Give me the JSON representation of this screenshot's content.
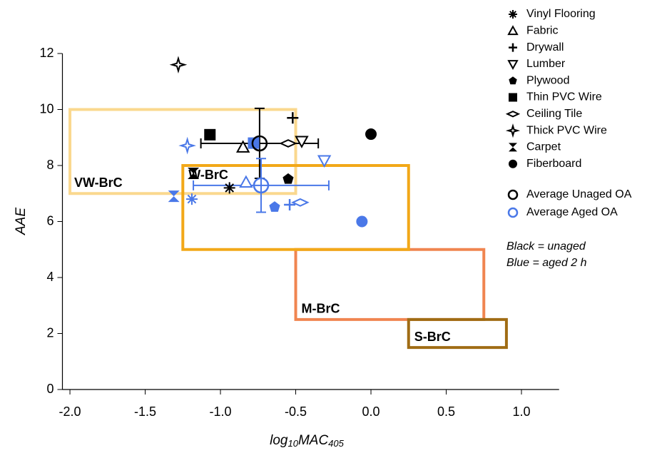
{
  "chart_data": {
    "type": "scatter",
    "y_label": "AAE",
    "x_label_parts": [
      "log",
      "10",
      "MAC",
      "405"
    ],
    "xlim": [
      -2.05,
      1.25
    ],
    "ylim": [
      0,
      12
    ],
    "xticks": [
      {
        "value": -2,
        "label": "-2.0"
      },
      -1.5,
      {
        "value": -1,
        "label": "-1.0"
      },
      -0.5,
      {
        "value": 0,
        "label": "0.0"
      },
      0.5,
      {
        "value": 1,
        "label": "1.0"
      }
    ],
    "yticks": [
      0,
      2,
      4,
      6,
      8,
      10,
      12
    ],
    "regions": [
      {
        "label": "VW-BrC",
        "x": [
          -2.0,
          -0.5
        ],
        "y": [
          7,
          10
        ],
        "color": "#fad88e"
      },
      {
        "label": "M-BrC",
        "x": [
          -0.5,
          0.75
        ],
        "y": [
          2.5,
          5
        ],
        "color": "#f08550"
      },
      {
        "label": "W-BrC",
        "x": [
          -1.25,
          0.25
        ],
        "y": [
          5,
          8
        ],
        "color": "#f2a818"
      },
      {
        "label": "S-BrC",
        "x": [
          0.25,
          0.9
        ],
        "y": [
          1.5,
          2.5
        ],
        "color": "#a06c14"
      }
    ],
    "categories": [
      "Vinyl Flooring",
      "Fabric",
      "Drywall",
      "Lumber",
      "Plywood",
      "Thin PVC Wire",
      "Ceiling Tile",
      "Thick PVC Wire",
      "Carpet",
      "Fiberboard"
    ],
    "markers": [
      "asterisk",
      "triangle",
      "plus",
      "triangle-down",
      "pentagon",
      "square",
      "diamond",
      "star",
      "hourglass",
      "circle"
    ],
    "series": [
      {
        "color": "#000000",
        "x": [
          -0.94,
          -0.85,
          -0.52,
          -0.46,
          -0.55,
          -1.07,
          -0.55,
          -1.28,
          -1.18,
          0.0
        ],
        "y": [
          7.2,
          8.65,
          9.7,
          8.87,
          7.52,
          9.1,
          8.79,
          11.6,
          7.72,
          9.12
        ]
      },
      {
        "color": "#4a78e8",
        "x": [
          -1.19,
          -0.83,
          -0.54,
          -0.31,
          -0.64,
          -0.78,
          -0.47,
          -1.22,
          -1.31,
          -0.06
        ],
        "y": [
          6.8,
          7.4,
          6.6,
          8.18,
          6.52,
          8.8,
          6.68,
          8.71,
          6.9,
          6.0
        ]
      }
    ],
    "averages": [
      {
        "name": "Average Unaged OA",
        "color": "#000000",
        "x": -0.74,
        "y": 8.79,
        "xerr": 0.39,
        "yerr": 1.25
      },
      {
        "name": "Average Aged OA",
        "color": "#4a78e8",
        "x": -0.73,
        "y": 7.29,
        "xerr": 0.45,
        "yerr": 0.96
      }
    ],
    "annotations": [
      {
        "text": "Black = unaged",
        "color": "#000000"
      },
      {
        "text": "Blue = aged 2 h",
        "color": "#4a78e8"
      }
    ]
  }
}
